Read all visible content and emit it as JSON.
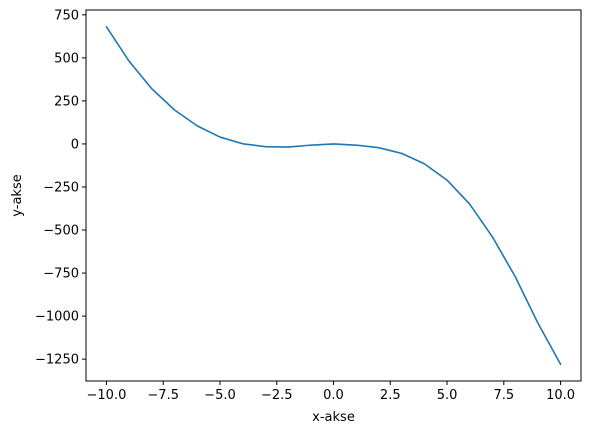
{
  "chart_data": {
    "type": "line",
    "title": "",
    "xlabel": "x-akse",
    "ylabel": "y-akse",
    "xlim": [
      -10.9,
      10.9
    ],
    "ylim": [
      -1377,
      778
    ],
    "xticks": [
      -10.0,
      -7.5,
      -5.0,
      -2.5,
      0.0,
      2.5,
      5.0,
      7.5,
      10.0
    ],
    "xtick_labels": [
      "−10.0",
      "−7.5",
      "−5.0",
      "−2.5",
      "0.0",
      "2.5",
      "5.0",
      "7.5",
      "10.0"
    ],
    "yticks": [
      750,
      500,
      250,
      0,
      -250,
      -500,
      -750,
      -1000,
      -1250
    ],
    "ytick_labels": [
      "750",
      "500",
      "250",
      "0",
      "−250",
      "−500",
      "−750",
      "−1000",
      "−1250"
    ],
    "grid": false,
    "legend": "none",
    "series": [
      {
        "color": "#1f77b4",
        "x": [
          -10,
          -9,
          -8,
          -7,
          -6,
          -5,
          -4,
          -3,
          -2,
          -1,
          0,
          1,
          2,
          3,
          4,
          5,
          6,
          7,
          8,
          9,
          10
        ],
        "y": [
          680,
          480,
          320,
          197,
          105,
          40,
          1,
          -16,
          -18,
          -7,
          0,
          -7,
          -22,
          -55,
          -115,
          -210,
          -350,
          -540,
          -770,
          -1040,
          -1280
        ]
      }
    ]
  }
}
